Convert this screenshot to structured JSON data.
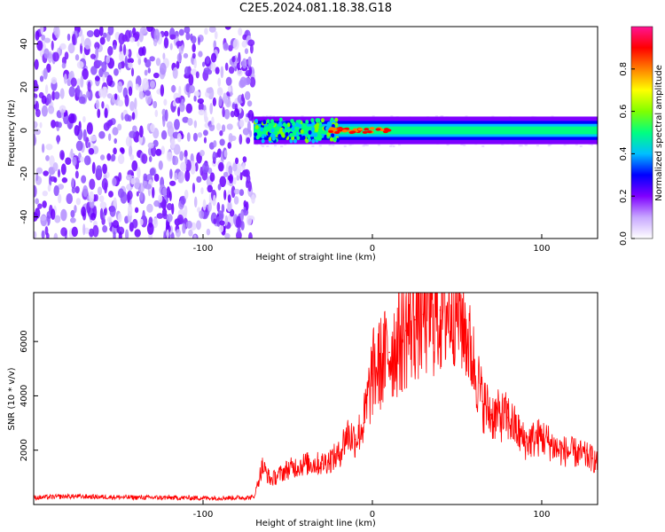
{
  "title": "C2E5.2024.081.18.38.G18",
  "chart_data": [
    {
      "type": "heatmap",
      "title": "C2E5.2024.081.18.38.G18",
      "xlabel": "Height of straight line (km)",
      "ylabel": "Frequency (Hz)",
      "xlim": [
        -200,
        133
      ],
      "ylim": [
        -50,
        48
      ],
      "x_ticks": [
        -100,
        0,
        100
      ],
      "y_ticks": [
        -40,
        -20,
        0,
        20,
        40
      ],
      "colorbar": {
        "label": "Normalized spectral amplitude",
        "range": [
          0,
          1
        ],
        "ticks": [
          0.0,
          0.2,
          0.4,
          0.6,
          0.8
        ],
        "colormap": [
          "#ffffff",
          "#c8a8ff",
          "#7f00ff",
          "#0000ff",
          "#00bfff",
          "#00ff80",
          "#80ff00",
          "#ffff00",
          "#ff8000",
          "#ff0000",
          "#ff1493"
        ]
      },
      "regions": [
        {
          "name": "broadband noise",
          "x_range": [
            -200,
            -70
          ],
          "y_range": [
            -50,
            48
          ],
          "amplitude": 0.1
        },
        {
          "name": "narrow signal band",
          "x_range": [
            -70,
            133
          ],
          "y_center": 0,
          "y_halfwidth": 2,
          "amplitude": 0.6
        },
        {
          "name": "peak cluster",
          "x_range": [
            -25,
            10
          ],
          "y_center": 0,
          "amplitude": 0.9
        }
      ]
    },
    {
      "type": "line",
      "xlabel": "Height of straight line (km)",
      "ylabel": "SNR (10 * v/v)",
      "xlim": [
        -200,
        133
      ],
      "ylim": [
        0,
        7800
      ],
      "x_ticks": [
        -100,
        0,
        100
      ],
      "y_ticks": [
        2000,
        4000,
        6000
      ],
      "series_color": "#ff0000",
      "x": [
        -200,
        -180,
        -160,
        -140,
        -120,
        -100,
        -80,
        -70,
        -65,
        -60,
        -50,
        -40,
        -30,
        -20,
        -15,
        -10,
        -5,
        0,
        5,
        10,
        15,
        20,
        25,
        30,
        40,
        50,
        55,
        60,
        65,
        70,
        80,
        90,
        100,
        110,
        120,
        130,
        133
      ],
      "values": [
        250,
        300,
        280,
        260,
        250,
        240,
        250,
        260,
        1400,
        900,
        1300,
        1500,
        1500,
        1800,
        2600,
        2400,
        3000,
        4800,
        5200,
        5600,
        6000,
        6400,
        6800,
        7000,
        7150,
        7200,
        6400,
        5200,
        3800,
        3300,
        3200,
        2300,
        2500,
        2000,
        1900,
        1700,
        1500
      ]
    }
  ]
}
